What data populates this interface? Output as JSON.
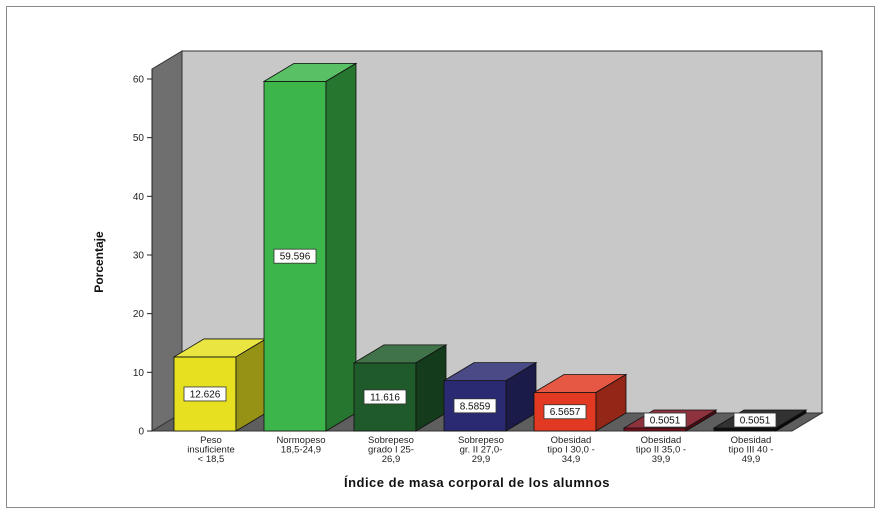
{
  "chart_data": {
    "type": "bar",
    "title": "",
    "xlabel": "Índice de masa corporal de los alumnos",
    "ylabel": "Porcentaje",
    "ylim": [
      0,
      60
    ],
    "yticks": [
      "0",
      "10",
      "20",
      "30",
      "40",
      "50",
      "60"
    ],
    "grid": false,
    "three_d": true,
    "categories": [
      [
        "Peso",
        "insuficiente",
        "< 18,5"
      ],
      [
        "Normopeso",
        "18,5-24,9"
      ],
      [
        "Sobrepeso",
        "grado I 25-",
        "26,9"
      ],
      [
        "Sobrepeso",
        "gr. II 27,0-",
        "29,9"
      ],
      [
        "Obesidad",
        "tipo I 30,0 -",
        "34,9"
      ],
      [
        "Obesidad",
        "tipo II 35,0 -",
        "39,9"
      ],
      [
        "Obesidad",
        "tipo III 40 -",
        "49,9"
      ]
    ],
    "values": [
      12.626,
      59.596,
      11.616,
      8.5859,
      6.5657,
      0.5051,
      0.5051
    ],
    "data_labels": [
      "12.626",
      "59.596",
      "11.616",
      "8.5859",
      "6.5657",
      "0.5051",
      "0.5051"
    ],
    "colors": [
      "#e6e020",
      "#3cb54a",
      "#1f5a2a",
      "#2a2a72",
      "#e23a22",
      "#7a0f1c",
      "#0e0e0e"
    ],
    "background_color": "#c8c8c8"
  }
}
